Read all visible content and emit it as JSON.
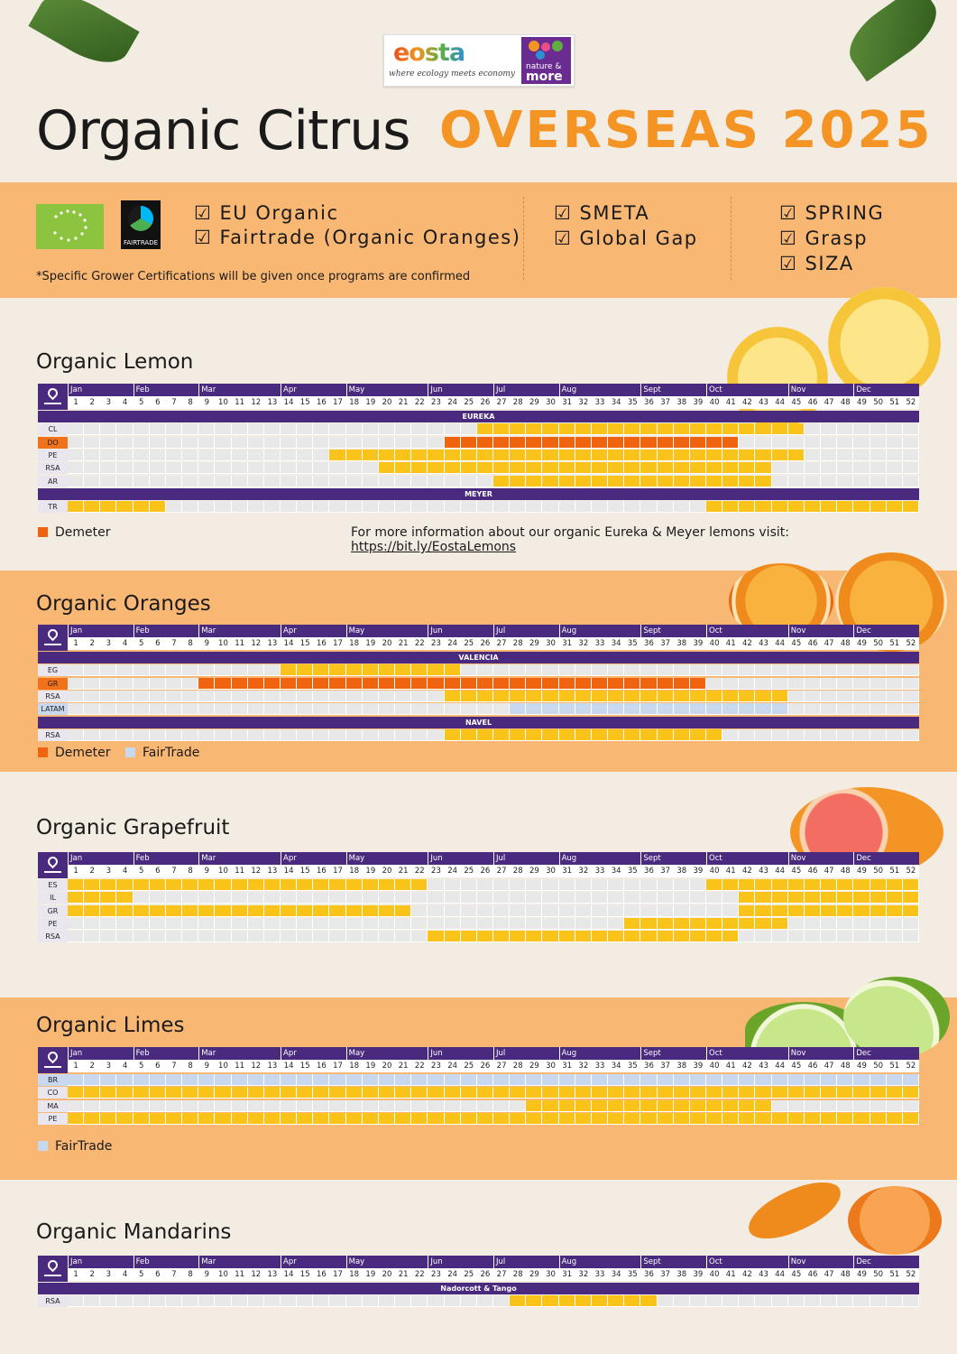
{
  "header": {
    "logo_text": "eosta",
    "tagline": "where ecology meets economy",
    "partner_logo_line1": "nature &",
    "partner_logo_line2": "more",
    "title_main": "Organic Citrus",
    "title_accent": "OVERSEAS 2025"
  },
  "certifications": {
    "fairtrade_logo_text": "FAIRTRADE",
    "col1": [
      "☑ EU Organic",
      "☑ Fairtrade (Organic Oranges)"
    ],
    "col2": [
      "☑ SMETA",
      "☑ Global Gap"
    ],
    "col3": [
      "☑ SPRING",
      "☑ Grasp",
      "☑ SIZA"
    ],
    "note": "*Specific Grower Certifications will be given once programs are confirmed"
  },
  "months": [
    "Jan",
    "Feb",
    "Mar",
    "Apr",
    "May",
    "Jun",
    "Jul",
    "Aug",
    "Sept",
    "Oct",
    "Nov",
    "Dec"
  ],
  "month_start_weeks": [
    1,
    5,
    9,
    14,
    18,
    23,
    27,
    31,
    36,
    40,
    45,
    49
  ],
  "colors": {
    "yellow": "#f9c31a",
    "demeter": "#f0630f",
    "fairtrade": "#c8d9ef",
    "empty": "#e8e8e8",
    "purple": "#4a2a7e",
    "band": "#f9b774",
    "accent": "#f39424"
  },
  "legend_labels": {
    "demeter": "Demeter",
    "fairtrade": "FairTrade"
  },
  "sections": [
    {
      "id": "lemon",
      "title": "Organic Lemon",
      "groups": [
        {
          "label": "EUREKA",
          "rows": [
            {
              "origin": "CL",
              "status": "",
              "spans": [
                [
                  26,
                  45,
                  "y"
                ]
              ]
            },
            {
              "origin": "DO",
              "status": "demeter",
              "spans": [
                [
                  24,
                  41,
                  "o"
                ]
              ]
            },
            {
              "origin": "PE",
              "status": "",
              "spans": [
                [
                  17,
                  45,
                  "y"
                ]
              ]
            },
            {
              "origin": "RSA",
              "status": "",
              "spans": [
                [
                  20,
                  43,
                  "y"
                ]
              ]
            },
            {
              "origin": "AR",
              "status": "",
              "spans": [
                [
                  27,
                  43,
                  "y"
                ]
              ]
            }
          ]
        },
        {
          "label": "MEYER",
          "rows": [
            {
              "origin": "TR",
              "status": "",
              "spans": [
                [
                  1,
                  6,
                  "y"
                ],
                [
                  40,
                  52,
                  "y"
                ]
              ]
            }
          ]
        }
      ],
      "legend": [
        "demeter"
      ],
      "info_text": "For more information about our organic Eureka & Meyer lemons visit: ",
      "info_link": "https://bit.ly/EostaLemons"
    },
    {
      "id": "oranges",
      "title": "Organic Oranges",
      "groups": [
        {
          "label": "VALENCIA",
          "rows": [
            {
              "origin": "EG",
              "status": "",
              "spans": [
                [
                  14,
                  24,
                  "y"
                ]
              ]
            },
            {
              "origin": "GR",
              "status": "demeter",
              "spans": [
                [
                  9,
                  39,
                  "o"
                ]
              ]
            },
            {
              "origin": "RSA",
              "status": "",
              "spans": [
                [
                  24,
                  44,
                  "y"
                ]
              ]
            },
            {
              "origin": "LATAM",
              "status": "fairtrade",
              "spans": [
                [
                  28,
                  44,
                  "b"
                ]
              ]
            }
          ]
        },
        {
          "label": "NAVEL",
          "rows": [
            {
              "origin": "RSA",
              "status": "",
              "spans": [
                [
                  24,
                  40,
                  "y"
                ]
              ]
            }
          ]
        }
      ],
      "legend": [
        "demeter",
        "fairtrade"
      ]
    },
    {
      "id": "grapefruit",
      "title": "Organic Grapefruit",
      "groups": [
        {
          "label": "",
          "rows": [
            {
              "origin": "ES",
              "status": "",
              "spans": [
                [
                  1,
                  22,
                  "y"
                ],
                [
                  40,
                  52,
                  "y"
                ]
              ]
            },
            {
              "origin": "IL",
              "status": "",
              "spans": [
                [
                  1,
                  4,
                  "y"
                ],
                [
                  42,
                  52,
                  "y"
                ]
              ]
            },
            {
              "origin": "GR",
              "status": "",
              "spans": [
                [
                  1,
                  21,
                  "y"
                ],
                [
                  42,
                  52,
                  "y"
                ]
              ]
            },
            {
              "origin": "PE",
              "status": "",
              "spans": [
                [
                  35,
                  44,
                  "y"
                ]
              ]
            },
            {
              "origin": "RSA",
              "status": "",
              "spans": [
                [
                  23,
                  41,
                  "y"
                ]
              ]
            }
          ]
        }
      ],
      "legend": []
    },
    {
      "id": "limes",
      "title": "Organic Limes",
      "groups": [
        {
          "label": "",
          "rows": [
            {
              "origin": "BR",
              "status": "fairtrade",
              "spans": [
                [
                  1,
                  52,
                  "b"
                ]
              ]
            },
            {
              "origin": "CO",
              "status": "",
              "spans": [
                [
                  1,
                  52,
                  "y"
                ]
              ]
            },
            {
              "origin": "MA",
              "status": "",
              "spans": [
                [
                  29,
                  43,
                  "y"
                ]
              ]
            },
            {
              "origin": "PE",
              "status": "",
              "spans": [
                [
                  1,
                  52,
                  "y"
                ]
              ]
            }
          ]
        }
      ],
      "legend": [
        "fairtrade"
      ]
    },
    {
      "id": "mandarins",
      "title": "Organic Mandarins",
      "groups": [
        {
          "label": "Nadorcott & Tango",
          "rows": [
            {
              "origin": "RSA",
              "status": "",
              "spans": [
                [
                  28,
                  36,
                  "y"
                ]
              ]
            }
          ]
        }
      ],
      "legend": []
    }
  ]
}
